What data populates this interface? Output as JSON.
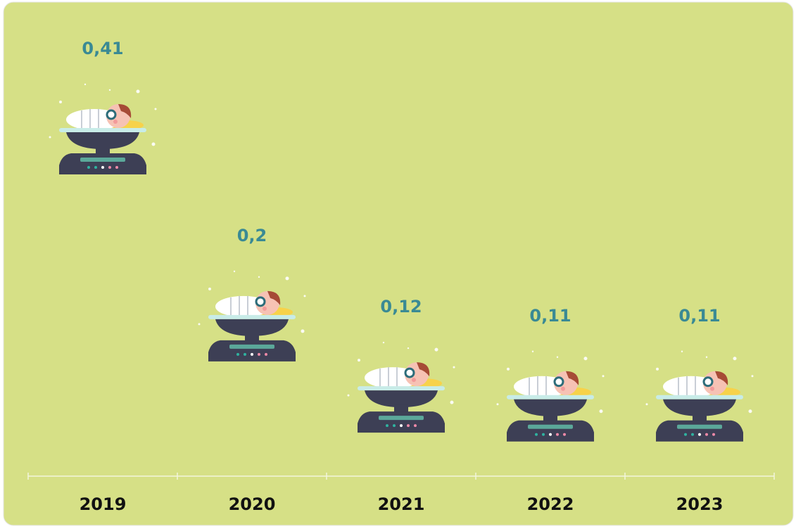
{
  "chart_data": {
    "type": "pictograph",
    "categories": [
      "2019",
      "2020",
      "2021",
      "2022",
      "2023"
    ],
    "values": [
      0.41,
      0.2,
      0.12,
      0.11,
      0.11
    ],
    "value_labels": [
      "0,41",
      "0,2",
      "0,12",
      "0,11",
      "0,11"
    ],
    "color": "#3a8a94"
  }
}
